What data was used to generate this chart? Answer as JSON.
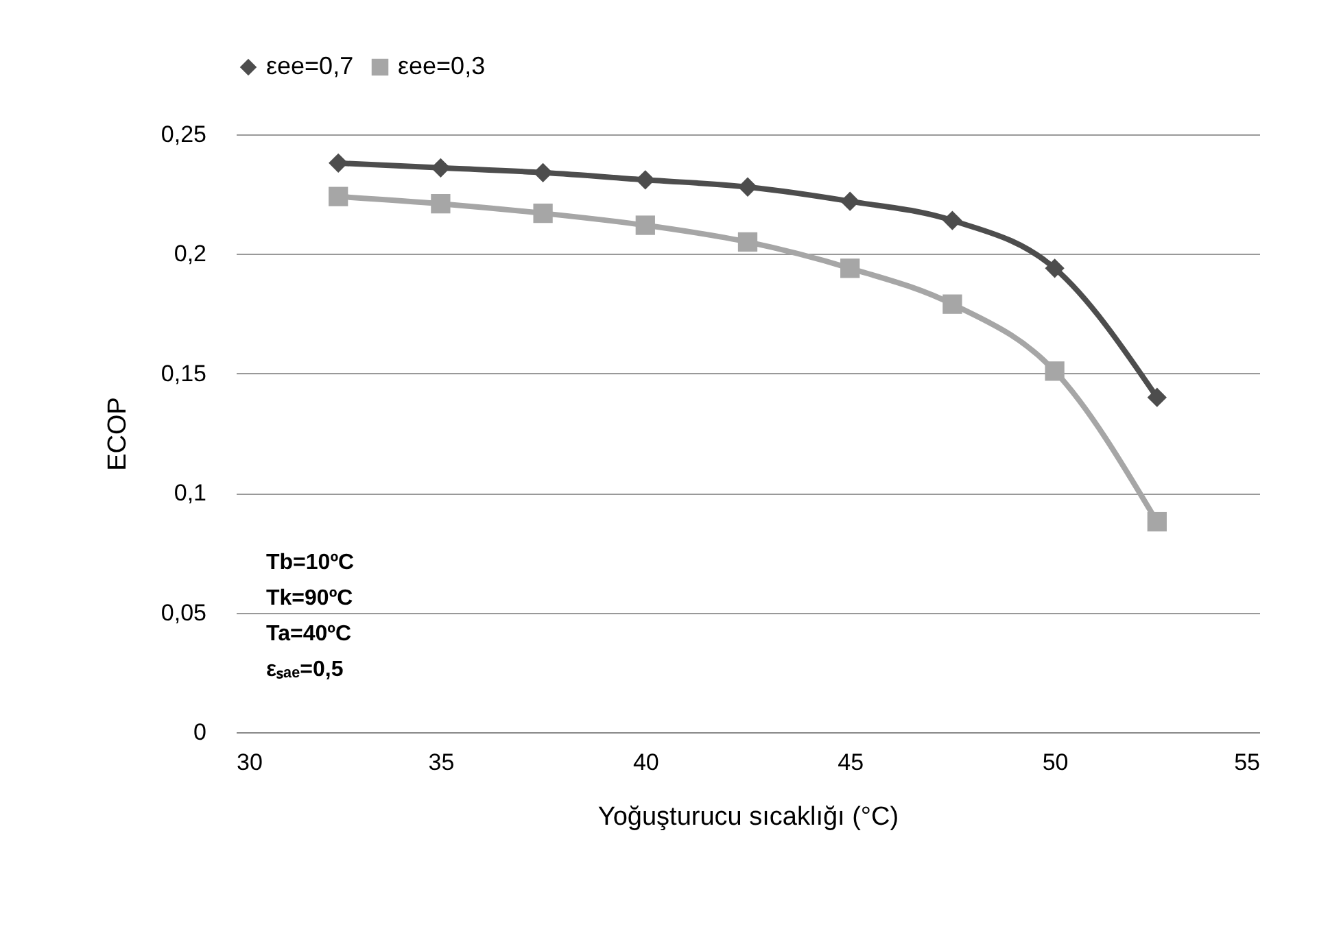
{
  "chart_data": {
    "type": "line",
    "xlabel": "Yoğuşturucu sıcaklığı (°C)",
    "ylabel": "ECOP",
    "x": [
      32.5,
      35,
      37.5,
      40,
      42.5,
      45,
      47.5,
      50,
      52.5
    ],
    "series": [
      {
        "name": "εee=0,7",
        "color": "#4d4d4d",
        "marker": "diamond",
        "values": [
          0.238,
          0.236,
          0.234,
          0.231,
          0.228,
          0.222,
          0.214,
          0.194,
          0.14
        ]
      },
      {
        "name": "εee=0,3",
        "color": "#a6a6a6",
        "marker": "square",
        "values": [
          0.224,
          0.221,
          0.217,
          0.212,
          0.205,
          0.194,
          0.179,
          0.151,
          0.088
        ]
      }
    ],
    "xlim": [
      30,
      55
    ],
    "xticks": [
      30,
      35,
      40,
      45,
      50,
      55
    ],
    "ylim": [
      0,
      0.25
    ],
    "yticks": [
      0,
      {
        "value": 0.05,
        "label": "0,05"
      },
      {
        "value": 0.1,
        "label": "0,1"
      },
      {
        "value": 0.15,
        "label": "0,15"
      },
      {
        "value": 0.2,
        "label": "0,2"
      },
      {
        "value": 0.25,
        "label": "0,25"
      }
    ],
    "grid": "y",
    "legend": "top",
    "line_style": "solid",
    "annotations": [
      "Tb=10ºC",
      "Tk=90ºC",
      "Ta=40ºC",
      "εₛₐₑ=0,5"
    ]
  }
}
